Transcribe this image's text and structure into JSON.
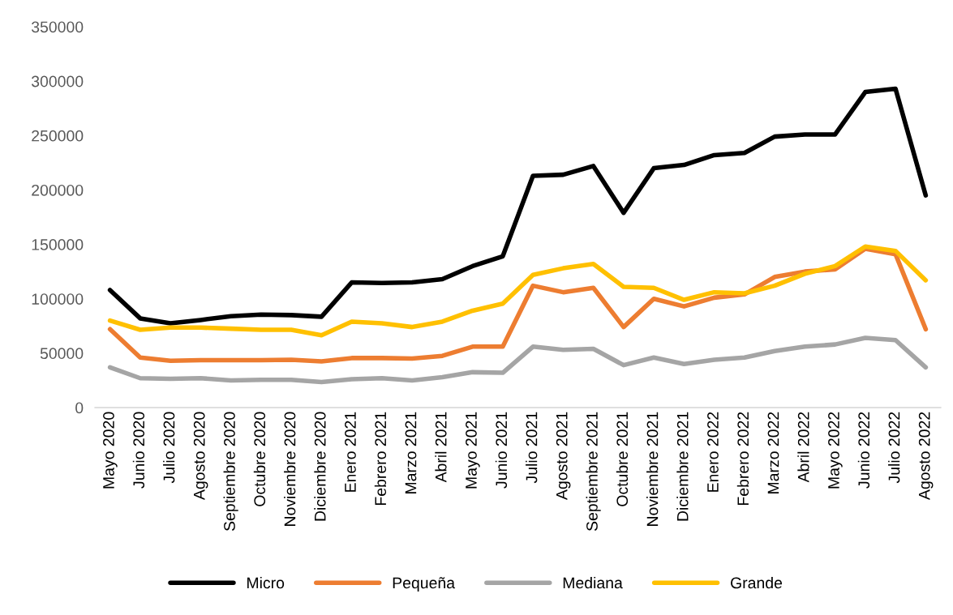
{
  "chart_data": {
    "type": "line",
    "categories": [
      "Mayo 2020",
      "Junio 2020",
      "Julio 2020",
      "Agosto 2020",
      "Septiembre 2020",
      "Octubre 2020",
      "Noviembre 2020",
      "Diciembre 2020",
      "Enero 2021",
      "Febrero 2021",
      "Marzo 2021",
      "Abril 2021",
      "Mayo 2021",
      "Junio 2021",
      "Julio 2021",
      "Agosto 2021",
      "Septiembre 2021",
      "Octubre 2021",
      "Noviembre 2021",
      "Diciembre 2021",
      "Enero 2022",
      "Febrero 2022",
      "Marzo 2022",
      "Abril 2022",
      "Mayo 2022",
      "Junio 2022",
      "Julio 2022",
      "Agosto 2022"
    ],
    "series": [
      {
        "name": "Micro",
        "color": "#000000",
        "values": [
          108000,
          82000,
          77500,
          80500,
          84000,
          85500,
          85000,
          83500,
          115000,
          114500,
          115000,
          118000,
          130000,
          139000,
          213000,
          214000,
          222000,
          179000,
          220000,
          223000,
          232000,
          234000,
          249000,
          251000,
          251000,
          290000,
          293000,
          195000
        ]
      },
      {
        "name": "Pequeña",
        "color": "#ed7d31",
        "values": [
          72000,
          46000,
          43000,
          43500,
          43500,
          43500,
          44000,
          42500,
          45500,
          45500,
          45000,
          47500,
          56000,
          56000,
          112000,
          106000,
          110000,
          74000,
          100000,
          93000,
          101000,
          104000,
          120000,
          125000,
          127000,
          146000,
          141000,
          72000
        ]
      },
      {
        "name": "Mediana",
        "color": "#a5a5a5",
        "values": [
          37000,
          27000,
          26500,
          27000,
          25000,
          25500,
          25500,
          23500,
          26000,
          27000,
          25000,
          28000,
          32500,
          32000,
          56000,
          53000,
          54000,
          39000,
          46000,
          40000,
          44000,
          46000,
          52000,
          56000,
          58000,
          64000,
          62000,
          37000
        ]
      },
      {
        "name": "Grande",
        "color": "#ffc000",
        "values": [
          80000,
          71500,
          73500,
          73500,
          72500,
          71500,
          71500,
          66500,
          79000,
          77500,
          74000,
          79000,
          89000,
          95500,
          122000,
          128000,
          132000,
          111000,
          110000,
          99000,
          106000,
          105000,
          112000,
          123000,
          130000,
          148000,
          144000,
          117000
        ]
      }
    ],
    "ylim": [
      0,
      350000
    ],
    "yticks": [
      0,
      50000,
      100000,
      150000,
      200000,
      250000,
      300000,
      350000
    ],
    "grid": false,
    "legend": "bottom",
    "marker": "none",
    "line_style": "solid"
  }
}
